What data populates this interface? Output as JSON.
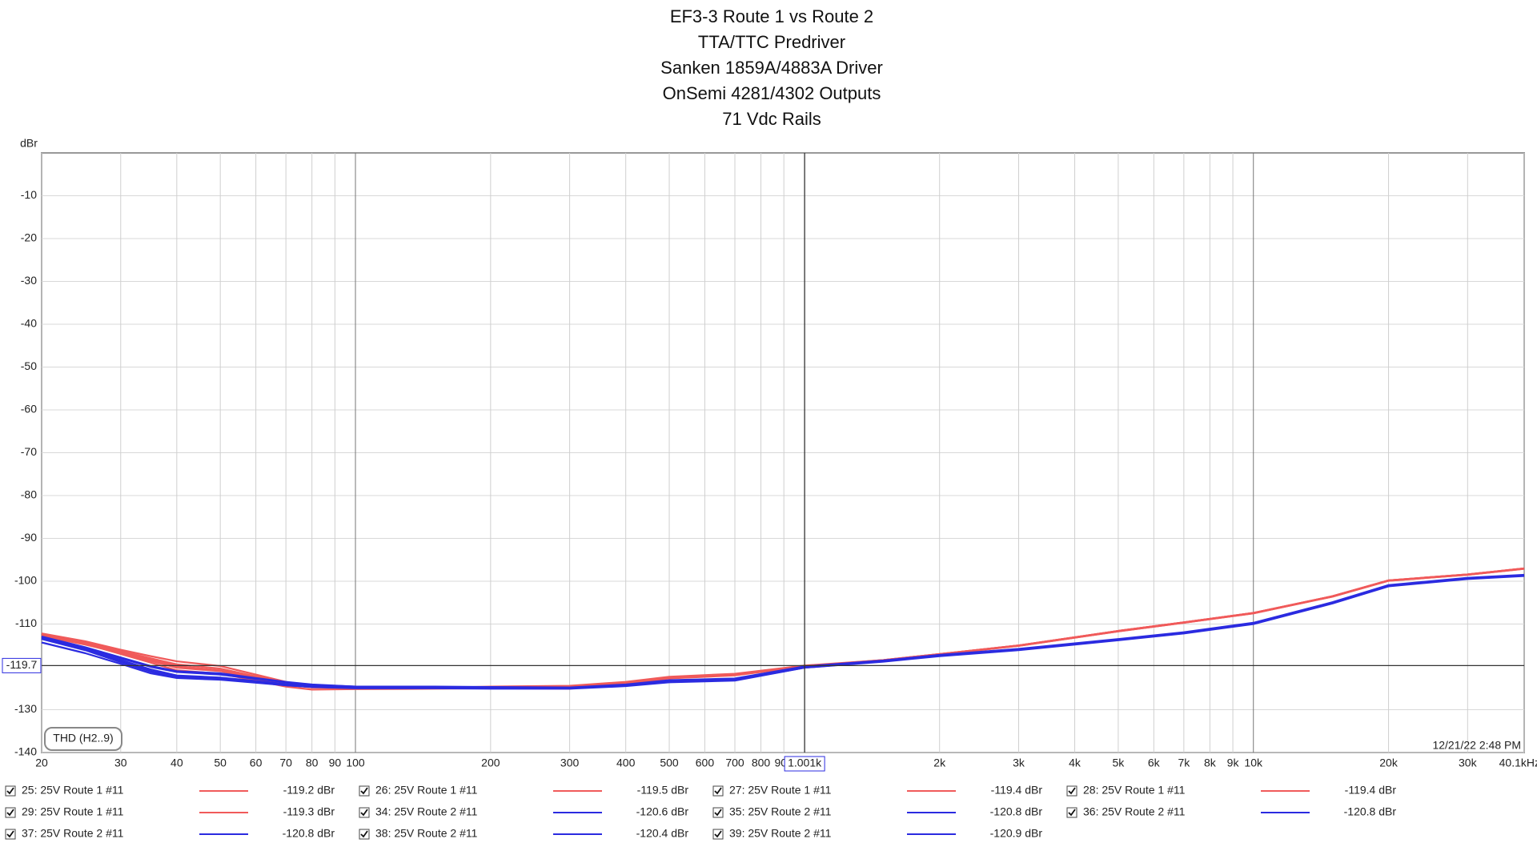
{
  "chart_data": {
    "type": "line",
    "title_lines": [
      "EF3-3 Route 1 vs Route 2",
      "TTA/TTC Predriver",
      "Sanken 1859A/4883A Driver",
      "OnSemi 4281/4302 Outputs",
      "71 Vdc Rails"
    ],
    "y_label": "dBr",
    "measurement_label": "THD (H2..9)",
    "timestamp": "12/21/22 2:48 PM",
    "log_x": true,
    "grid": true,
    "xlim": [
      20,
      40100
    ],
    "ylim": [
      -140,
      0
    ],
    "xticks": [
      20,
      30,
      40,
      50,
      60,
      70,
      80,
      90,
      100,
      200,
      300,
      400,
      500,
      600,
      700,
      800,
      900,
      {
        "value": 2000,
        "label": "2k"
      },
      {
        "value": 3000,
        "label": "3k"
      },
      {
        "value": 4000,
        "label": "4k"
      },
      {
        "value": 5000,
        "label": "5k"
      },
      {
        "value": 6000,
        "label": "6k"
      },
      {
        "value": 7000,
        "label": "7k"
      },
      {
        "value": 8000,
        "label": "8k"
      },
      {
        "value": 9000,
        "label": "9k"
      },
      {
        "value": 10000,
        "label": "10k"
      },
      {
        "value": 20000,
        "label": "20k"
      },
      {
        "value": 30000,
        "label": "30k"
      },
      {
        "value": 40100,
        "label": "40.1kHz"
      }
    ],
    "yticks": [
      -10,
      -20,
      -30,
      -40,
      -50,
      -60,
      -70,
      -80,
      -90,
      -100,
      -110,
      -130,
      -140
    ],
    "cursor": {
      "x": {
        "value": 1001,
        "label": "1.001k"
      },
      "y": {
        "value": -119.7,
        "label": "-119.7"
      }
    },
    "x": [
      20,
      25,
      30,
      35,
      40,
      50,
      60,
      70,
      80,
      100,
      150,
      200,
      300,
      400,
      500,
      700,
      1000,
      1500,
      2000,
      3000,
      5000,
      7000,
      10000,
      15000,
      20000,
      30000,
      40100
    ],
    "series": [
      {
        "name": "25: 25V Route 1 #11",
        "readout": "-119.2 dBr",
        "color": "#f05a5a",
        "values": [
          -112.2,
          -114,
          -116,
          -117.5,
          -118.7,
          -119.8,
          -121.8,
          -123.5,
          -124.5,
          -124.8,
          -124.9,
          -124.6,
          -124.4,
          -123.5,
          -122.3,
          -121.6,
          -119.7,
          -118.4,
          -117,
          -115,
          -111.6,
          -109.6,
          -107.4,
          -103.5,
          -99.8,
          -98.4,
          -97
        ]
      },
      {
        "name": "26: 25V Route 1 #11",
        "readout": "-119.5 dBr",
        "color": "#f05a5a",
        "values": [
          -112.4,
          -114.3,
          -116.5,
          -118.3,
          -119.8,
          -120.8,
          -122.5,
          -124,
          -124.8,
          -124.9,
          -125,
          -124.8,
          -124.6,
          -123.8,
          -122.6,
          -121.9,
          -119.9,
          -118.5,
          -117.1,
          -115.1,
          -111.7,
          -109.7,
          -107.5,
          -103.6,
          -99.9,
          -98.5,
          -97.1
        ]
      },
      {
        "name": "27: 25V Route 1 #11",
        "readout": "-119.4 dBr",
        "color": "#f05a5a",
        "values": [
          -112.6,
          -114.6,
          -117,
          -119,
          -120.8,
          -121.6,
          -123.2,
          -124.6,
          -125.3,
          -125.2,
          -125.1,
          -125,
          -125.1,
          -124,
          -122.7,
          -122,
          -119.9,
          -118.4,
          -117,
          -115,
          -111.6,
          -109.6,
          -107.4,
          -103.5,
          -99.8,
          -98.4,
          -97
        ]
      },
      {
        "name": "28: 25V Route 1 #11",
        "readout": "-119.4 dBr",
        "color": "#f05a5a",
        "values": [
          -112.3,
          -114.2,
          -116.3,
          -118,
          -119.4,
          -120.4,
          -122.2,
          -123.8,
          -124.7,
          -124.9,
          -125,
          -124.7,
          -124.5,
          -123.6,
          -122.4,
          -121.7,
          -119.8,
          -118.4,
          -117,
          -115,
          -111.6,
          -109.6,
          -107.4,
          -103.5,
          -99.8,
          -98.4,
          -97
        ]
      },
      {
        "name": "29: 25V Route 1 #11",
        "readout": "-119.3 dBr",
        "color": "#f05a5a",
        "values": [
          -112.8,
          -114.8,
          -116.8,
          -118.6,
          -120.2,
          -121,
          -122.8,
          -124.2,
          -124.8,
          -124.9,
          -124.9,
          -124.7,
          -124.5,
          -123.6,
          -122.4,
          -121.7,
          -119.8,
          -118.5,
          -117.1,
          -115.1,
          -111.7,
          -109.7,
          -107.5,
          -103.6,
          -99.9,
          -98.5,
          -97.1
        ]
      },
      {
        "name": "34: 25V Route 2 #11",
        "readout": "-120.6 dBr",
        "color": "#2b2be0",
        "values": [
          -113,
          -115.5,
          -118,
          -120,
          -121.2,
          -121.8,
          -122.8,
          -123.6,
          -124.2,
          -124.6,
          -124.7,
          -124.8,
          -124.9,
          -124.2,
          -123.2,
          -122.8,
          -120,
          -118.6,
          -117.3,
          -115.9,
          -113.6,
          -112,
          -109.8,
          -105,
          -101,
          -99.3,
          -98.6
        ]
      },
      {
        "name": "35: 25V Route 2 #11",
        "readout": "-120.8 dBr",
        "color": "#2b2be0",
        "values": [
          -113.2,
          -115.8,
          -118.4,
          -120.6,
          -122,
          -122.5,
          -123.3,
          -124,
          -124.5,
          -124.8,
          -124.8,
          -124.9,
          -124.9,
          -124.3,
          -123.4,
          -123,
          -120.1,
          -118.7,
          -117.4,
          -116,
          -113.7,
          -112.1,
          -109.9,
          -105.1,
          -101.1,
          -99.4,
          -98.7
        ]
      },
      {
        "name": "36: 25V Route 2 #11",
        "readout": "-120.8 dBr",
        "color": "#2b2be0",
        "values": [
          -113.4,
          -116,
          -118.8,
          -121,
          -122.3,
          -122.8,
          -123.5,
          -124.2,
          -124.6,
          -124.9,
          -124.9,
          -125,
          -125,
          -124.4,
          -123.5,
          -123.1,
          -120.1,
          -118.7,
          -117.4,
          -116,
          -113.7,
          -112.1,
          -109.9,
          -105.1,
          -101.1,
          -99.4,
          -98.7
        ]
      },
      {
        "name": "37: 25V Route 2 #11",
        "readout": "-120.8 dBr",
        "color": "#2b2be0",
        "values": [
          -114.3,
          -116.8,
          -119.3,
          -121.5,
          -122.6,
          -123,
          -123.7,
          -124.3,
          -124.7,
          -124.9,
          -124.9,
          -125,
          -125,
          -124.4,
          -123.5,
          -123.1,
          -120.2,
          -118.7,
          -117.4,
          -116,
          -113.7,
          -112.1,
          -109.9,
          -105.1,
          -101.1,
          -99.4,
          -98.7
        ]
      },
      {
        "name": "38: 25V Route 2 #11",
        "readout": "-120.4 dBr",
        "color": "#2b2be0",
        "values": [
          -112.9,
          -115.4,
          -117.8,
          -119.8,
          -121,
          -121.5,
          -122.6,
          -123.5,
          -124.1,
          -124.6,
          -124.6,
          -124.7,
          -124.8,
          -124.1,
          -123.1,
          -122.7,
          -119.9,
          -118.5,
          -117.2,
          -115.8,
          -113.5,
          -111.9,
          -109.7,
          -104.9,
          -100.9,
          -99.2,
          -98.5
        ]
      },
      {
        "name": "39: 25V Route 2 #11",
        "readout": "-120.9 dBr",
        "color": "#2b2be0",
        "values": [
          -113.5,
          -116.1,
          -118.9,
          -121.1,
          -122.4,
          -122.9,
          -123.6,
          -124.3,
          -124.7,
          -125,
          -125,
          -125.1,
          -125.1,
          -124.5,
          -123.6,
          -123.2,
          -120.2,
          -118.8,
          -117.5,
          -116.1,
          -113.8,
          -112.2,
          -110,
          -105.2,
          -101.2,
          -99.5,
          -98.8
        ]
      }
    ]
  }
}
